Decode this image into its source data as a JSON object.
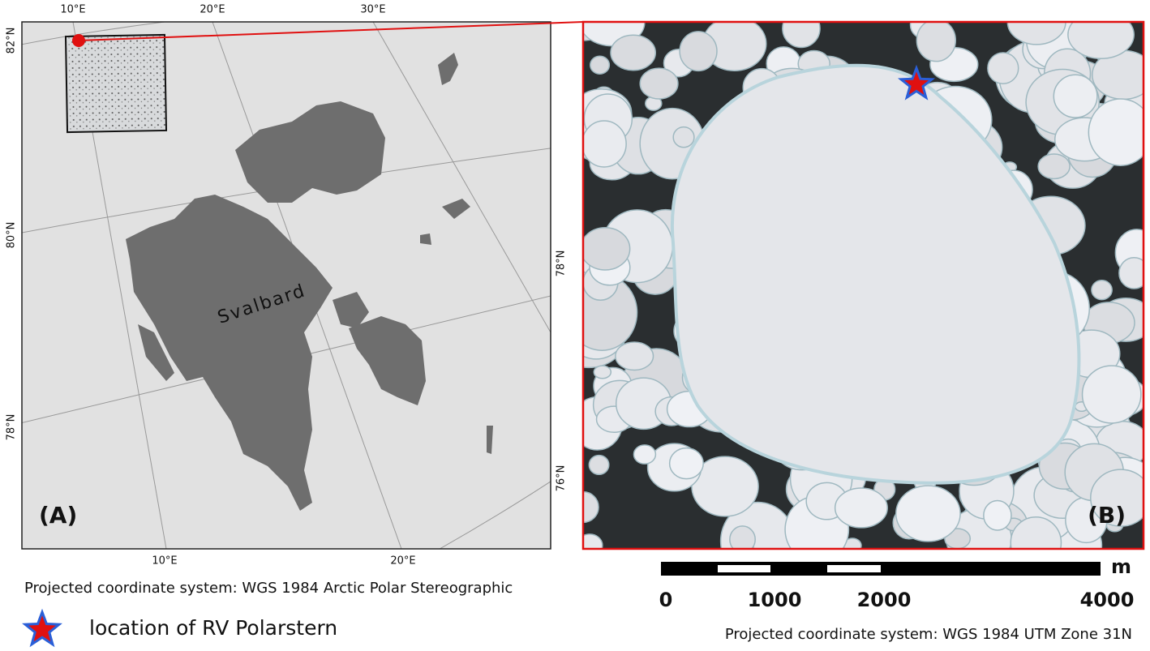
{
  "panel_a": {
    "label": "(A)",
    "place": "Svalbard",
    "lon_top": [
      "10°E",
      "20°E",
      "30°E"
    ],
    "lon_bottom": [
      "10°E",
      "20°E"
    ],
    "lat_left": [
      "82°N",
      "80°N",
      "78°N"
    ],
    "lat_right": [
      "78°N",
      "76°N"
    ],
    "crs": "Projected coordinate system: WGS 1984 Arctic Polar Stereographic"
  },
  "panel_b": {
    "label": "(B)",
    "scale_bar": {
      "unit": "m",
      "labels": [
        "0",
        "1000",
        "2000",
        "4000"
      ]
    },
    "crs": "Projected coordinate system: WGS 1984 UTM Zone 31N"
  },
  "legend": {
    "label": "location of RV Polarstern"
  }
}
